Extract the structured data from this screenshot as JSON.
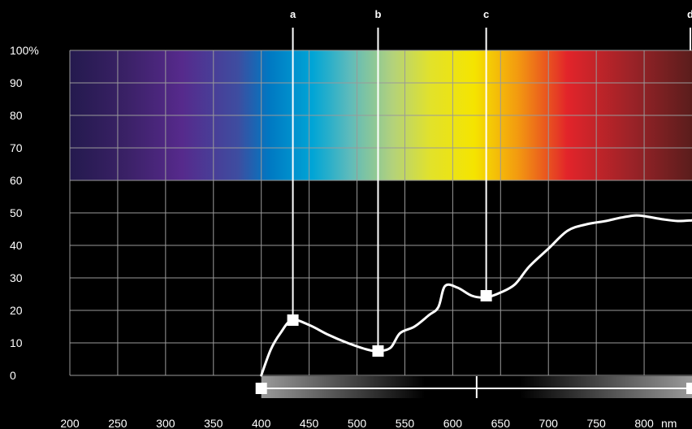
{
  "chart_data": {
    "type": "line",
    "title": "",
    "xlabel": "",
    "ylabel": "",
    "x_unit": "nm",
    "y_unit": "%",
    "xlim": [
      200,
      850
    ],
    "ylim": [
      0,
      100
    ],
    "x_ticks": [
      200,
      250,
      300,
      350,
      400,
      450,
      500,
      550,
      600,
      650,
      700,
      750,
      800
    ],
    "x_tick_labels": [
      "200",
      "250",
      "300",
      "350",
      "400",
      "450",
      "500",
      "550",
      "600",
      "650",
      "700",
      "750",
      "800"
    ],
    "y_ticks": [
      0,
      10,
      20,
      30,
      40,
      50,
      60,
      70,
      80,
      90,
      100
    ],
    "y_tick_labels": [
      "0",
      "10",
      "20",
      "30",
      "40",
      "50",
      "60",
      "70",
      "80",
      "90",
      "100%"
    ],
    "spectrum_band": {
      "y_range": [
        60,
        100
      ],
      "x_range": [
        200,
        850
      ]
    },
    "grid": true,
    "series": [
      {
        "name": "",
        "color": "#ffffff",
        "points": [
          [
            400,
            0
          ],
          [
            410,
            8
          ],
          [
            420,
            13
          ],
          [
            432,
            17
          ],
          [
            450,
            15.5
          ],
          [
            470,
            12.5
          ],
          [
            490,
            10
          ],
          [
            510,
            8
          ],
          [
            522,
            7.5
          ],
          [
            535,
            8.5
          ],
          [
            545,
            13
          ],
          [
            560,
            15
          ],
          [
            575,
            18.5
          ],
          [
            585,
            21
          ],
          [
            592,
            27.5
          ],
          [
            605,
            27
          ],
          [
            620,
            24.5
          ],
          [
            635,
            24
          ],
          [
            650,
            25.5
          ],
          [
            665,
            28
          ],
          [
            680,
            33.5
          ],
          [
            700,
            39
          ],
          [
            720,
            44.5
          ],
          [
            740,
            46.5
          ],
          [
            760,
            47.5
          ],
          [
            775,
            48.5
          ],
          [
            790,
            49.2
          ],
          [
            800,
            49
          ],
          [
            820,
            48
          ],
          [
            835,
            47.5
          ],
          [
            850,
            47.7
          ]
        ]
      }
    ],
    "markers": [
      {
        "label": "a",
        "x": 433,
        "y": 17
      },
      {
        "label": "b",
        "x": 522,
        "y": 7.5
      },
      {
        "label": "c",
        "x": 635,
        "y": 24.5
      },
      {
        "label": "d",
        "x": 850
      }
    ],
    "range_slider": {
      "min": 400,
      "max": 850,
      "center": 625
    },
    "colors": {
      "background": "#000000",
      "grid": "#9a9a9a",
      "line": "#ffffff"
    }
  }
}
